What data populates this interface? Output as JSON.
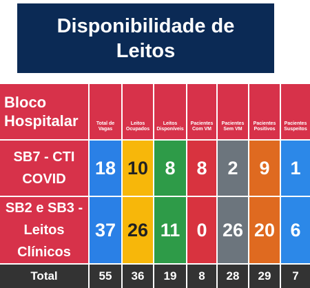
{
  "title": "Disponibilidade de Leitos",
  "table": {
    "headers": [
      "Bloco Hospitalar",
      "Total de Vagas",
      "Leitos Ocupados",
      "Leitos Disponíveis",
      "Pacientes Com VM",
      "Pacientes Sem VM",
      "Pacientes Positivos",
      "Pacientes Suspeitos"
    ],
    "rows": [
      [
        "SB7 - CTI COVID",
        18,
        10,
        8,
        8,
        2,
        9,
        1
      ],
      [
        "SB2 e SB3 - Leitos Clínicos",
        37,
        26,
        11,
        0,
        26,
        20,
        6
      ]
    ],
    "total": [
      "Total",
      55,
      36,
      19,
      8,
      28,
      29,
      7
    ]
  }
}
